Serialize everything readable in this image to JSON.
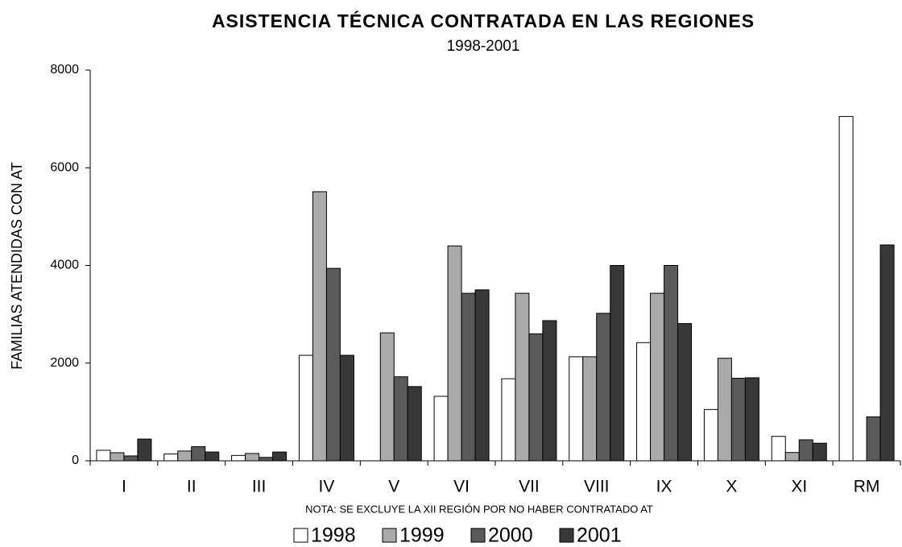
{
  "chart_data": {
    "type": "bar",
    "title": "ASISTENCIA TÉCNICA CONTRATADA EN LAS REGIONES",
    "subtitle": "1998-2001",
    "y_label": "FAMILIAS ATENDIDAS CON AT",
    "note": "NOTA: SE EXCLUYE LA XII REGIÓN POR NO HABER CONTRATADO AT",
    "categories": [
      "I",
      "II",
      "III",
      "IV",
      "V",
      "VI",
      "VII",
      "VIII",
      "IX",
      "X",
      "XI",
      "RM"
    ],
    "series": [
      {
        "name": "1998",
        "color": "#ffffff",
        "values": [
          215,
          140,
          110,
          2160,
          0,
          1320,
          1680,
          2130,
          2420,
          1050,
          500,
          7050
        ]
      },
      {
        "name": "1999",
        "color": "#aaaaaa",
        "values": [
          165,
          200,
          150,
          5510,
          2620,
          4400,
          3430,
          2130,
          3430,
          2100,
          170,
          0
        ]
      },
      {
        "name": "2000",
        "color": "#5a5a5a",
        "values": [
          100,
          290,
          70,
          3940,
          1720,
          3430,
          2600,
          3020,
          4000,
          1690,
          430,
          900
        ]
      },
      {
        "name": "2001",
        "color": "#383838",
        "values": [
          445,
          180,
          180,
          2160,
          1520,
          3500,
          2870,
          4000,
          2810,
          1700,
          360,
          4420
        ]
      }
    ],
    "ylim": [
      0,
      8000
    ],
    "yticks": [
      0,
      2000,
      4000,
      6000,
      8000
    ],
    "grid": false
  }
}
